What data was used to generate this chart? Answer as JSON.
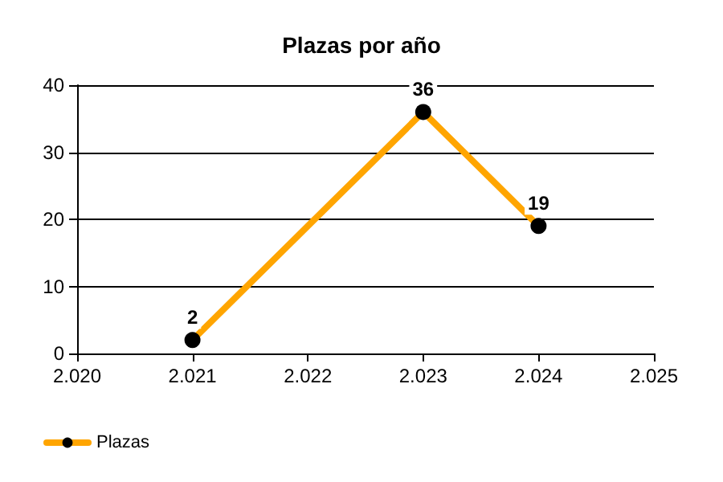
{
  "chart_data": {
    "type": "line",
    "title": "Plazas por año",
    "x": [
      2021,
      2023,
      2024
    ],
    "series": [
      {
        "name": "Plazas",
        "color": "#ffa500",
        "values": [
          2,
          36,
          19
        ]
      }
    ],
    "xlim": [
      2020,
      2025
    ],
    "xticks": [
      {
        "value": 2020,
        "label": "2.020"
      },
      {
        "value": 2021,
        "label": "2.021"
      },
      {
        "value": 2022,
        "label": "2.022"
      },
      {
        "value": 2023,
        "label": "2.023"
      },
      {
        "value": 2024,
        "label": "2.024"
      },
      {
        "value": 2025,
        "label": "2.025"
      }
    ],
    "ylim": [
      0,
      40
    ],
    "yticks": [
      0,
      10,
      20,
      30,
      40
    ],
    "grid": "y",
    "legend": "bottom left",
    "marker": "circle",
    "line_style": "solid",
    "data_labels": true
  }
}
